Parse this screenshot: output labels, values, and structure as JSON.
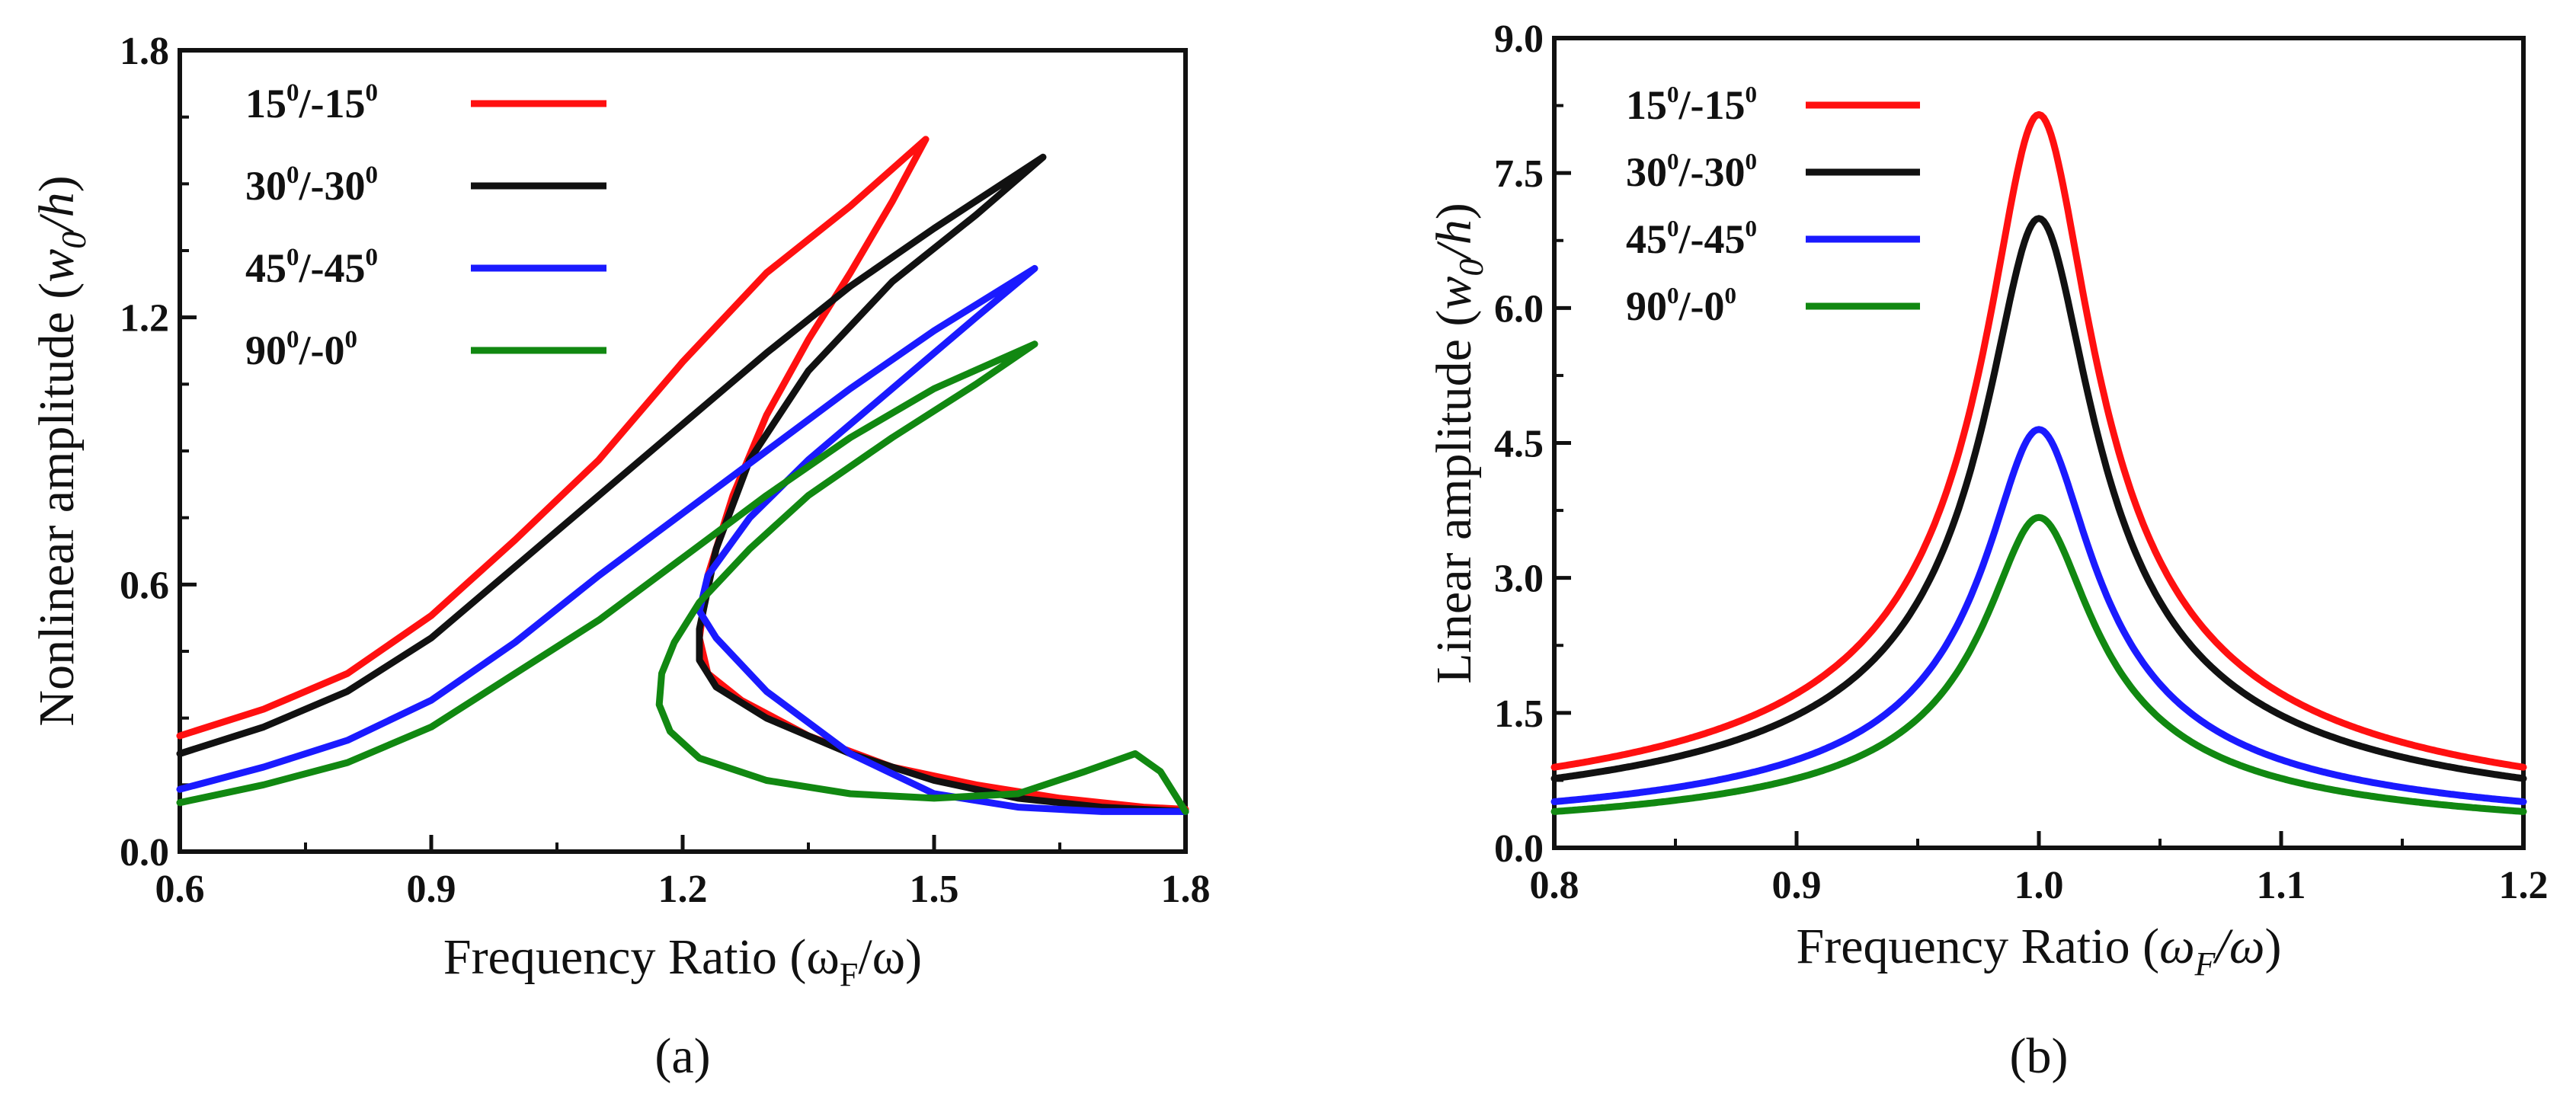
{
  "chart_data": [
    {
      "type": "line",
      "panel_label": "(a)",
      "xlabel": "Frequency Ratio (ωF/ω)",
      "ylabel": "Nonlinear amplitude (w0/h)",
      "xlim": [
        0.6,
        1.8
      ],
      "ylim": [
        0.0,
        1.8
      ],
      "xticks": [
        "0.6",
        "0.9",
        "1.2",
        "1.5",
        "1.8"
      ],
      "yticks": [
        "0.0",
        "0.6",
        "1.2",
        "1.8"
      ],
      "legend_position": "top-left",
      "series": [
        {
          "name": "15⁰/-15⁰",
          "legend_base": "15",
          "legend_sup": "0",
          "legend_mid": "/-15",
          "legend_sup2": "0",
          "color": "#ff1010",
          "points": [
            [
              0.6,
              0.26
            ],
            [
              0.7,
              0.32
            ],
            [
              0.8,
              0.4
            ],
            [
              0.9,
              0.53
            ],
            [
              1.0,
              0.7
            ],
            [
              1.1,
              0.88
            ],
            [
              1.2,
              1.1
            ],
            [
              1.3,
              1.3
            ],
            [
              1.4,
              1.45
            ],
            [
              1.49,
              1.6
            ],
            [
              1.45,
              1.46
            ],
            [
              1.4,
              1.3
            ],
            [
              1.35,
              1.15
            ],
            [
              1.3,
              0.98
            ],
            [
              1.26,
              0.8
            ],
            [
              1.23,
              0.62
            ],
            [
              1.22,
              0.48
            ],
            [
              1.23,
              0.4
            ],
            [
              1.27,
              0.34
            ],
            [
              1.35,
              0.26
            ],
            [
              1.45,
              0.19
            ],
            [
              1.55,
              0.15
            ],
            [
              1.65,
              0.12
            ],
            [
              1.75,
              0.1
            ],
            [
              1.8,
              0.095
            ]
          ]
        },
        {
          "name": "30⁰/-30⁰",
          "legend_base": "30",
          "legend_sup": "0",
          "legend_mid": "/-30",
          "legend_sup2": "0",
          "color": "#111111",
          "points": [
            [
              0.6,
              0.22
            ],
            [
              0.7,
              0.28
            ],
            [
              0.8,
              0.36
            ],
            [
              0.9,
              0.48
            ],
            [
              1.0,
              0.64
            ],
            [
              1.1,
              0.8
            ],
            [
              1.2,
              0.96
            ],
            [
              1.3,
              1.12
            ],
            [
              1.4,
              1.27
            ],
            [
              1.5,
              1.4
            ],
            [
              1.63,
              1.56
            ],
            [
              1.55,
              1.43
            ],
            [
              1.45,
              1.28
            ],
            [
              1.35,
              1.08
            ],
            [
              1.28,
              0.88
            ],
            [
              1.24,
              0.68
            ],
            [
              1.22,
              0.5
            ],
            [
              1.22,
              0.43
            ],
            [
              1.24,
              0.37
            ],
            [
              1.3,
              0.3
            ],
            [
              1.4,
              0.22
            ],
            [
              1.5,
              0.16
            ],
            [
              1.6,
              0.12
            ],
            [
              1.7,
              0.1
            ],
            [
              1.8,
              0.09
            ]
          ]
        },
        {
          "name": "45⁰/-45⁰",
          "legend_base": "45",
          "legend_sup": "0",
          "legend_mid": "/-45",
          "legend_sup2": "0",
          "color": "#1a1aff",
          "points": [
            [
              0.6,
              0.14
            ],
            [
              0.7,
              0.19
            ],
            [
              0.8,
              0.25
            ],
            [
              0.9,
              0.34
            ],
            [
              1.0,
              0.47
            ],
            [
              1.1,
              0.62
            ],
            [
              1.2,
              0.76
            ],
            [
              1.3,
              0.9
            ],
            [
              1.4,
              1.04
            ],
            [
              1.5,
              1.17
            ],
            [
              1.62,
              1.31
            ],
            [
              1.55,
              1.2
            ],
            [
              1.45,
              1.04
            ],
            [
              1.35,
              0.88
            ],
            [
              1.28,
              0.75
            ],
            [
              1.23,
              0.62
            ],
            [
              1.22,
              0.54
            ],
            [
              1.24,
              0.48
            ],
            [
              1.3,
              0.36
            ],
            [
              1.4,
              0.22
            ],
            [
              1.5,
              0.13
            ],
            [
              1.6,
              0.1
            ],
            [
              1.7,
              0.09
            ],
            [
              1.8,
              0.09
            ]
          ]
        },
        {
          "name": "90⁰/-0⁰",
          "legend_base": "90",
          "legend_sup": "0",
          "legend_mid": "/-0",
          "legend_sup2": "0",
          "color": "#118811",
          "points": [
            [
              0.6,
              0.11
            ],
            [
              0.7,
              0.15
            ],
            [
              0.8,
              0.2
            ],
            [
              0.9,
              0.28
            ],
            [
              1.0,
              0.4
            ],
            [
              1.1,
              0.52
            ],
            [
              1.2,
              0.66
            ],
            [
              1.3,
              0.8
            ],
            [
              1.4,
              0.93
            ],
            [
              1.5,
              1.04
            ],
            [
              1.62,
              1.14
            ],
            [
              1.55,
              1.05
            ],
            [
              1.45,
              0.93
            ],
            [
              1.35,
              0.8
            ],
            [
              1.28,
              0.68
            ],
            [
              1.22,
              0.56
            ],
            [
              1.19,
              0.47
            ],
            [
              1.175,
              0.4
            ],
            [
              1.172,
              0.33
            ],
            [
              1.185,
              0.27
            ],
            [
              1.22,
              0.21
            ],
            [
              1.3,
              0.16
            ],
            [
              1.4,
              0.13
            ],
            [
              1.5,
              0.12
            ],
            [
              1.6,
              0.13
            ],
            [
              1.68,
              0.18
            ],
            [
              1.74,
              0.22
            ],
            [
              1.77,
              0.18
            ],
            [
              1.8,
              0.09
            ]
          ]
        }
      ]
    },
    {
      "type": "line",
      "panel_label": "(b)",
      "xlabel": "Frequency Ratio (ωF/ω)",
      "ylabel": "Linear amplitude (w0/h)",
      "xlim": [
        0.8,
        1.2
      ],
      "ylim": [
        0.0,
        9.0
      ],
      "xticks": [
        "0.8",
        "0.9",
        "1.0",
        "1.1",
        "1.2"
      ],
      "yticks": [
        "0.0",
        "1.5",
        "3.0",
        "4.5",
        "6.0",
        "7.5",
        "9.0"
      ],
      "legend_position": "top-left",
      "series": [
        {
          "name": "15⁰/-15⁰",
          "legend_base": "15",
          "legend_sup": "0",
          "legend_mid": "/-15",
          "legend_sup2": "0",
          "color": "#ff1010",
          "peak": 8.1,
          "base": 0.05
        },
        {
          "name": "30⁰/-30⁰",
          "legend_base": "30",
          "legend_sup": "0",
          "legend_mid": "/-30",
          "legend_sup2": "0",
          "color": "#111111",
          "peak": 6.95,
          "base": 0.045
        },
        {
          "name": "45⁰/-45⁰",
          "legend_base": "45",
          "legend_sup": "0",
          "legend_mid": "/-45",
          "legend_sup2": "0",
          "color": "#1a1aff",
          "peak": 4.62,
          "base": 0.03
        },
        {
          "name": "90⁰/-0⁰",
          "legend_base": "90",
          "legend_sup": "0",
          "legend_mid": "/-0",
          "legend_sup2": "0",
          "color": "#118811",
          "peak": 3.65,
          "base": 0.022
        }
      ]
    }
  ]
}
